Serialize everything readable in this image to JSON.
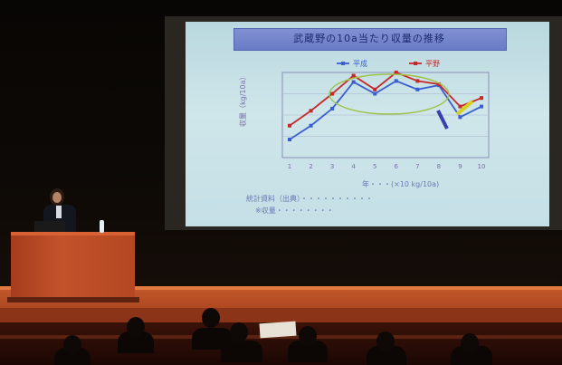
{
  "slide": {
    "title": "武蔵野の10a当たり収量の推移",
    "y_axis_label": "収量（kg/10a）",
    "axis_note": "年・・・(×10 kg/10a)",
    "note_line_1": "統計資料（出典）・・・・・・・・・・",
    "note_line_2": "※収量・・・・・・・・"
  },
  "chart_data": {
    "type": "line",
    "title": "武蔵野の10a当たり収量の推移",
    "xlabel": "",
    "ylabel": "収量（kg/10a）",
    "categories": [
      "1",
      "2",
      "3",
      "4",
      "5",
      "6",
      "7",
      "8",
      "9",
      "10"
    ],
    "ylim": [
      100,
      500
    ],
    "series": [
      {
        "name": "平成",
        "color": "#3a5fd0",
        "values": [
          185,
          250,
          330,
          455,
          400,
          460,
          420,
          440,
          290,
          340
        ]
      },
      {
        "name": "平野",
        "color": "#c62828",
        "values": [
          250,
          320,
          400,
          485,
          420,
          500,
          460,
          445,
          340,
          380
        ]
      }
    ],
    "grid": true,
    "legend": "top-center"
  },
  "colors": {
    "screen": "#c8e2e8",
    "stage": "#b44822",
    "title_bar": "#7282c8"
  }
}
